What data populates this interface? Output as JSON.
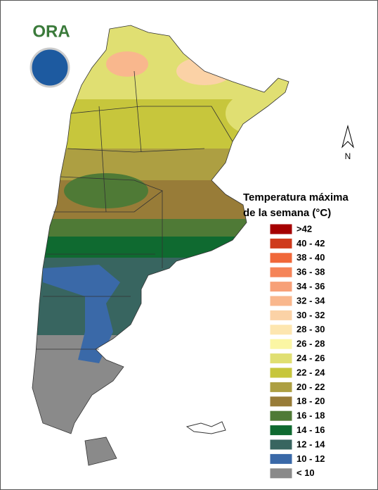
{
  "logo": {
    "text": "ORA"
  },
  "north": "N",
  "legend": {
    "title": [
      "Temperatura máxima",
      "de la semana (°C)"
    ],
    "items": [
      {
        "label": ">42",
        "color": "#a50000"
      },
      {
        "label": "40 - 42",
        "color": "#cf3a1c"
      },
      {
        "label": "38 - 40",
        "color": "#f0683a"
      },
      {
        "label": "36 - 38",
        "color": "#f58458"
      },
      {
        "label": "34 - 36",
        "color": "#f7a078"
      },
      {
        "label": "32 - 34",
        "color": "#f9b78d"
      },
      {
        "label": "30 - 32",
        "color": "#fbd2a6"
      },
      {
        "label": "28 - 30",
        "color": "#fde6b0"
      },
      {
        "label": "26 - 28",
        "color": "#fbf6a4"
      },
      {
        "label": "24 - 26",
        "color": "#e0df72"
      },
      {
        "label": "22 - 24",
        "color": "#c7c63c"
      },
      {
        "label": "20 - 22",
        "color": "#ad9f42"
      },
      {
        "label": "18 - 20",
        "color": "#987c38"
      },
      {
        "label": "16 - 18",
        "color": "#4f7a36"
      },
      {
        "label": "14 - 16",
        "color": "#0f6a30"
      },
      {
        "label": "12 - 14",
        "color": "#386560"
      },
      {
        "label": "10 - 12",
        "color": "#3a69a8"
      },
      {
        "label": "< 10",
        "color": "#8a8a8a"
      }
    ]
  }
}
